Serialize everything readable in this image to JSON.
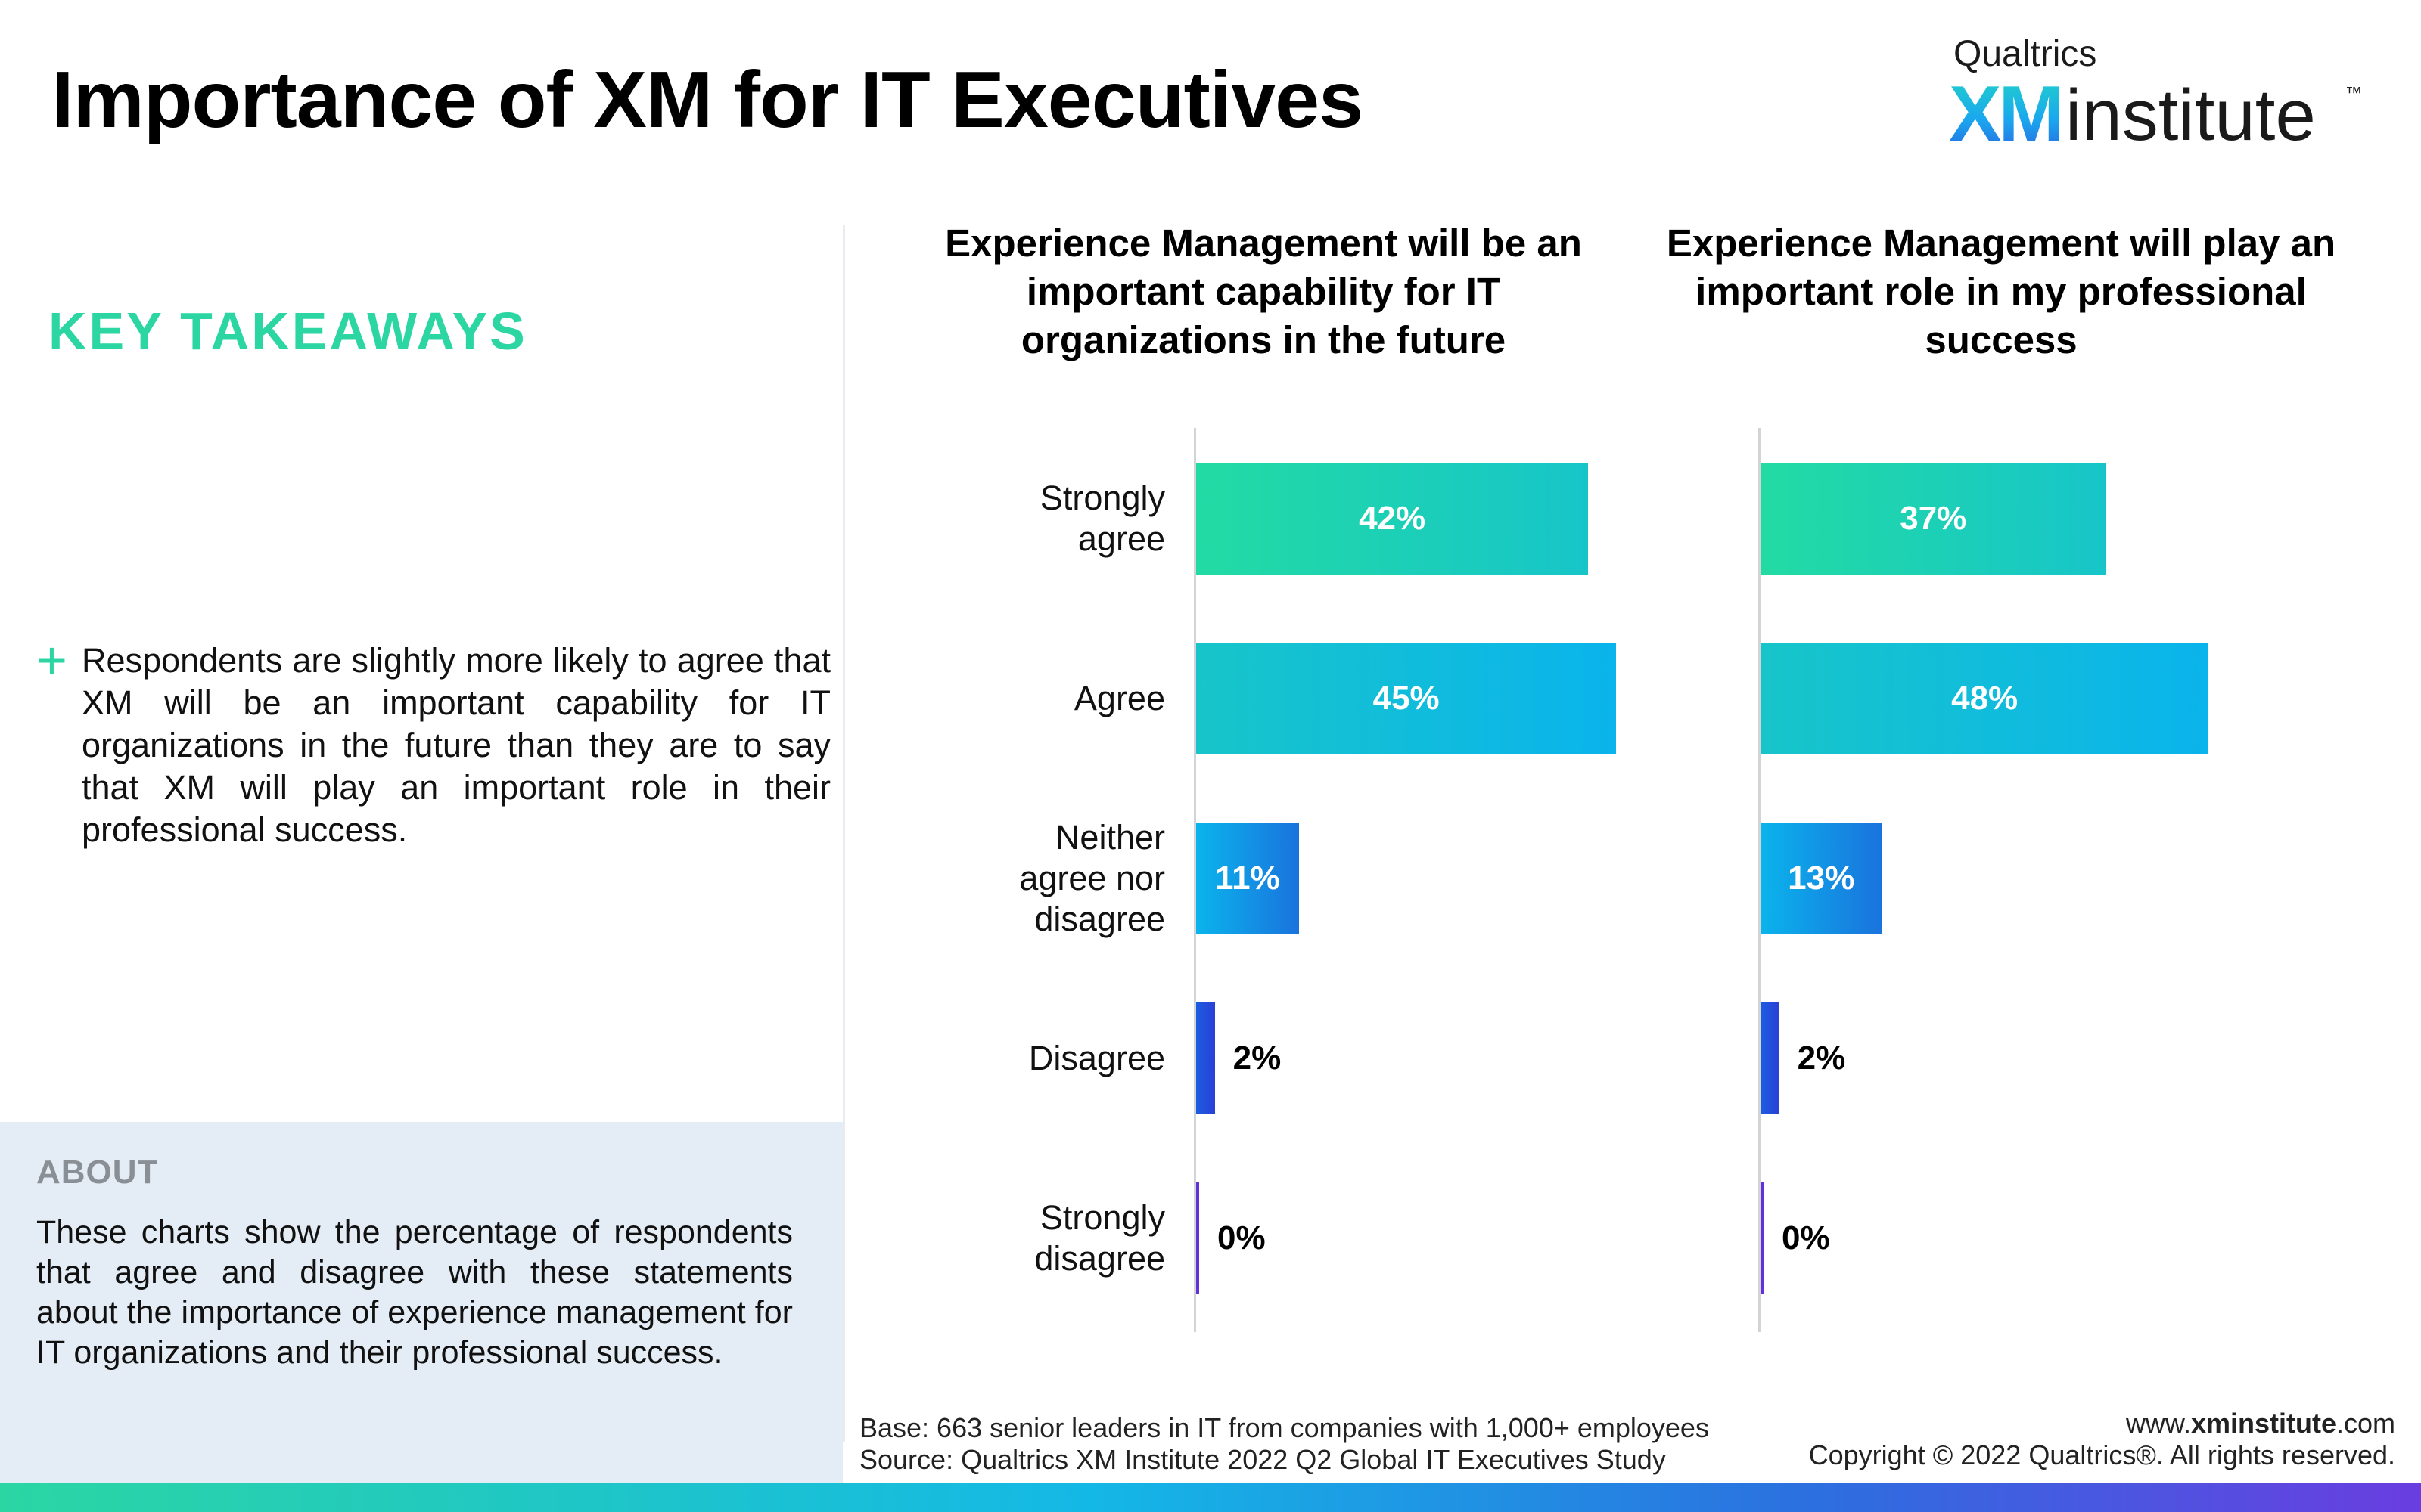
{
  "title": "Importance of XM for IT Executives",
  "logo": {
    "brand": "Qualtrics",
    "xm": "XM",
    "institute": "institute",
    "tm": "™"
  },
  "key_takeaways": {
    "heading": "KEY TAKEAWAYS",
    "items": [
      "Respondents are slightly more likely to agree that XM will be an important capability for IT organizations in the future than they are to say that XM will play an important role in their professional success."
    ]
  },
  "about": {
    "heading": "ABOUT",
    "text": "These charts show the percentage of respondents that agree and disagree with these statements about the importance of experience management for IT organizations and their professional success."
  },
  "footer": {
    "base": "Base: 663 senior leaders in IT from companies with 1,000+ employees",
    "source": "Source: Qualtrics XM Institute 2022 Q2 Global IT Executives Study",
    "url_prefix": "www.",
    "url_bold": "xminstitute",
    "url_suffix": ".com",
    "copyright": "Copyright © 2022 Qualtrics®. All rights reserved."
  },
  "colors": {
    "accent_green": "#2bd6a3",
    "about_bg": "#e4ecf5",
    "strongly_agree": [
      "#22dba3",
      "#17c5c9"
    ],
    "agree": [
      "#17c5c9",
      "#0ab4ec"
    ],
    "neither": [
      "#0ab4ec",
      "#1a73dd"
    ],
    "disagree": [
      "#1b5ee0",
      "#2a3fd6"
    ],
    "strongly_disagree": [
      "#5b35d8",
      "#6a2fd8"
    ]
  },
  "chart_data": [
    {
      "type": "bar",
      "orientation": "horizontal",
      "title": "Experience Management will be an important capability for IT organizations in the future",
      "categories": [
        "Strongly agree",
        "Agree",
        "Neither agree nor disagree",
        "Disagree",
        "Strongly disagree"
      ],
      "values": [
        42,
        45,
        11,
        2,
        0
      ],
      "value_labels": [
        "42%",
        "45%",
        "11%",
        "2%",
        "0%"
      ],
      "unit": "%"
    },
    {
      "type": "bar",
      "orientation": "horizontal",
      "title": "Experience Management will play an important role in my professional success",
      "categories": [
        "Strongly agree",
        "Agree",
        "Neither agree nor disagree",
        "Disagree",
        "Strongly disagree"
      ],
      "values": [
        37,
        48,
        13,
        2,
        0
      ],
      "value_labels": [
        "37%",
        "48%",
        "13%",
        "2%",
        "0%"
      ],
      "unit": "%"
    }
  ]
}
